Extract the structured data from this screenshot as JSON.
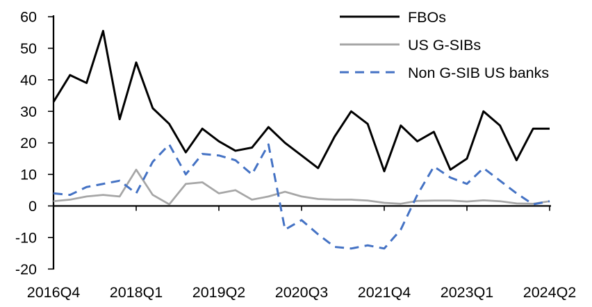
{
  "chart_data": {
    "type": "line",
    "x_labels": [
      "2016Q4",
      "2017Q1",
      "2017Q2",
      "2017Q3",
      "2017Q4",
      "2018Q1",
      "2018Q2",
      "2018Q3",
      "2018Q4",
      "2019Q1",
      "2019Q2",
      "2019Q3",
      "2019Q4",
      "2020Q1",
      "2020Q2",
      "2020Q3",
      "2020Q4",
      "2021Q1",
      "2021Q2",
      "2021Q3",
      "2021Q4",
      "2022Q1",
      "2022Q2",
      "2022Q3",
      "2022Q4",
      "2023Q1",
      "2023Q2",
      "2023Q3",
      "2023Q4",
      "2024Q1",
      "2024Q2"
    ],
    "x_tick_labels": [
      "2016Q4",
      "2018Q1",
      "2019Q2",
      "2020Q3",
      "2021Q4",
      "2023Q1",
      "2024Q2"
    ],
    "x_tick_every": 5,
    "ylim": [
      -20,
      60
    ],
    "ytick_step": 10,
    "ytick_labels": [
      "60",
      "50",
      "40",
      "30",
      "20",
      "10",
      "0",
      "-10",
      "-20"
    ],
    "grid": false,
    "legend_position": "top-right",
    "series": [
      {
        "name": "FBOs",
        "color": "#000000",
        "style": "solid",
        "values": [
          33,
          41.5,
          39,
          55.5,
          27.5,
          45.5,
          31,
          26,
          17,
          24.5,
          20.5,
          17.5,
          18.5,
          25,
          20,
          16,
          12,
          22,
          30,
          26,
          11,
          25.5,
          20.5,
          23.5,
          11.5,
          15,
          30,
          25.5,
          14.5,
          24.5,
          24.5
        ]
      },
      {
        "name": "US G-SIBs",
        "color": "#A6A6A6",
        "style": "solid",
        "values": [
          1.5,
          2,
          3,
          3.5,
          3,
          11.5,
          3.5,
          0.5,
          7,
          7.5,
          4,
          5,
          2,
          3,
          4.5,
          3,
          2.2,
          2,
          2,
          1.7,
          1,
          0.7,
          1.6,
          1.7,
          1.7,
          1.4,
          1.8,
          1.5,
          0.8,
          0.7,
          1.5
        ]
      },
      {
        "name": "Non G-SIB US banks",
        "color": "#4472C4",
        "style": "dashed",
        "values": [
          4,
          3.5,
          6,
          7,
          8,
          4,
          14,
          19.5,
          10,
          16.5,
          16,
          14.5,
          10,
          19.5,
          -7.5,
          -4.5,
          -9,
          -13,
          -13.5,
          -12.5,
          -13.5,
          -7.5,
          3.5,
          12.5,
          9,
          7,
          12,
          8,
          4,
          0.5,
          1.5
        ]
      }
    ]
  }
}
